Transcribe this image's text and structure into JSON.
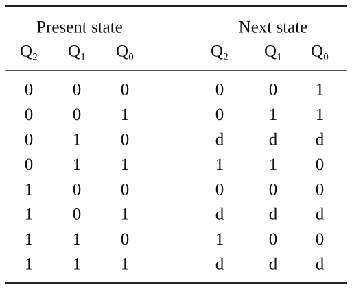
{
  "table": {
    "groups": [
      "Present state",
      "Next state"
    ],
    "columns": [
      {
        "letter": "Q",
        "index": "2"
      },
      {
        "letter": "Q",
        "index": "1"
      },
      {
        "letter": "Q",
        "index": "0"
      },
      {
        "letter": "Q",
        "index": "2"
      },
      {
        "letter": "Q",
        "index": "1"
      },
      {
        "letter": "Q",
        "index": "0"
      }
    ],
    "rows": [
      [
        "0",
        "0",
        "0",
        "0",
        "0",
        "1"
      ],
      [
        "0",
        "0",
        "1",
        "0",
        "1",
        "1"
      ],
      [
        "0",
        "1",
        "0",
        "d",
        "d",
        "d"
      ],
      [
        "0",
        "1",
        "1",
        "1",
        "1",
        "0"
      ],
      [
        "1",
        "0",
        "0",
        "0",
        "0",
        "0"
      ],
      [
        "1",
        "0",
        "1",
        "d",
        "d",
        "d"
      ],
      [
        "1",
        "1",
        "0",
        "1",
        "0",
        "0"
      ],
      [
        "1",
        "1",
        "1",
        "d",
        "d",
        "d"
      ]
    ]
  }
}
